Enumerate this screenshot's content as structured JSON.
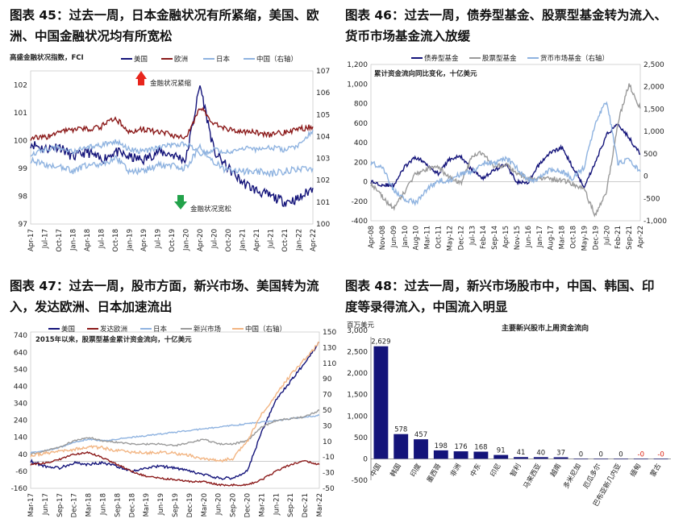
{
  "panels": [
    {
      "title_line1": "图表 45：过去一周，日本金融状况有所紧缩，美国、欧",
      "title_line2": "洲、中国金融状况均有所宽松"
    },
    {
      "title_line1": "图表 46：过去一周，债券型基金、股票型基金转为流入、",
      "title_line2": "货币市场基金流入放缓"
    },
    {
      "title_line1": "图表 47：过去一周，股市方面，新兴市场、美国转为流",
      "title_line2": "入，发达欧洲、日本加速流出"
    },
    {
      "title_line1": "图表 48：过去一周，新兴市场股市中，中国、韩国、印",
      "title_line2": "度等录得流入，中国流入明显"
    }
  ],
  "colors": {
    "navy": "#14147a",
    "darkred": "#8b1a1a",
    "lightblue": "#8fb3e0",
    "gray": "#9a9a9a",
    "peach": "#f2b583",
    "red_arrow": "#e8251c",
    "green_arrow": "#22a24a"
  },
  "chart_data": [
    {
      "type": "line",
      "title": "高盛金融状况指数，FCI",
      "annotation_up": "金融状况紧缩",
      "annotation_down": "金融状况宽松",
      "x": [
        "Apr-17",
        "Jul-17",
        "Oct-17",
        "Jan-18",
        "Apr-18",
        "Jul-18",
        "Oct-18",
        "Jan-19",
        "Apr-19",
        "Jul-19",
        "Oct-19",
        "Jan-20",
        "Apr-20",
        "Jul-20",
        "Oct-20",
        "Jan-21",
        "Apr-21",
        "Jul-21",
        "Oct-21",
        "Jan-22",
        "Apr-22"
      ],
      "ylim": [
        97,
        102.5
      ],
      "yticks": [
        "97",
        "98",
        "99",
        "100",
        "101",
        "102"
      ],
      "y2lim": [
        100,
        107
      ],
      "y2ticks": [
        "100",
        "101",
        "102",
        "103",
        "104",
        "105",
        "106",
        "107"
      ],
      "series": [
        {
          "name": "美国",
          "axis": "left",
          "values": [
            99.9,
            99.7,
            99.8,
            99.4,
            99.6,
            99.3,
            99.6,
            99.4,
            99.3,
            99.6,
            99.5,
            99.3,
            102.0,
            99.6,
            99.0,
            98.5,
            98.2,
            98.0,
            97.8,
            97.9,
            98.3
          ]
        },
        {
          "name": "欧洲",
          "axis": "left",
          "values": [
            100.1,
            100.1,
            100.3,
            100.4,
            100.4,
            100.5,
            100.8,
            100.3,
            100.4,
            100.3,
            100.2,
            100.1,
            101.2,
            100.6,
            100.4,
            100.3,
            100.3,
            100.2,
            100.3,
            100.4,
            100.5
          ]
        },
        {
          "name": "日本",
          "axis": "left",
          "values": [
            99.3,
            99.1,
            99.1,
            98.9,
            99.1,
            99.1,
            99.4,
            98.9,
            98.9,
            99.1,
            99.1,
            99.0,
            99.8,
            99.2,
            98.9,
            98.9,
            98.9,
            98.8,
            98.9,
            99.0,
            99.0
          ]
        },
        {
          "name": "中国（右轴）",
          "axis": "right",
          "values": [
            103.2,
            103.4,
            103.5,
            103.3,
            103.5,
            103.6,
            103.8,
            103.4,
            103.3,
            103.5,
            103.6,
            103.7,
            103.2,
            103.4,
            103.3,
            103.5,
            103.4,
            103.5,
            103.4,
            103.6,
            104.3
          ]
        }
      ]
    },
    {
      "type": "line",
      "title": "累计资金流向同比变化，十亿美元",
      "x": [
        "Apr-08",
        "Nov-08",
        "Jun-09",
        "Jan-10",
        "Aug-10",
        "Mar-11",
        "Oct-11",
        "May-12",
        "Dec-12",
        "Jul-13",
        "Feb-14",
        "Sep-14",
        "Apr-15",
        "Nov-15",
        "Jun-16",
        "Jan-17",
        "Aug-17",
        "Mar-18",
        "Oct-18",
        "May-19",
        "Dec-19",
        "Jul-20",
        "Feb-21",
        "Sep-21",
        "Apr-22"
      ],
      "ylim": [
        -400,
        1200
      ],
      "yticks": [
        "-400",
        "-200",
        "0",
        "200",
        "400",
        "600",
        "800",
        "1,000",
        "1,200"
      ],
      "y2lim": [
        -1000,
        2500
      ],
      "y2ticks": [
        "-1,000",
        "-500",
        "0",
        "500",
        "1,000",
        "1,500",
        "2,000",
        "2,500"
      ],
      "series": [
        {
          "name": "债券型基金",
          "axis": "left",
          "values": [
            0,
            -30,
            -40,
            150,
            250,
            180,
            80,
            230,
            260,
            120,
            40,
            120,
            180,
            0,
            -20,
            180,
            300,
            350,
            150,
            -50,
            200,
            480,
            600,
            450,
            280
          ]
        },
        {
          "name": "股票型基金",
          "axis": "left",
          "values": [
            -20,
            -150,
            -280,
            -100,
            80,
            130,
            150,
            40,
            -20,
            250,
            300,
            150,
            180,
            90,
            30,
            30,
            30,
            20,
            -20,
            -80,
            -350,
            -100,
            600,
            1000,
            750
          ]
        },
        {
          "name": "货币市场基金（右轴）",
          "axis": "right",
          "values": [
            300,
            200,
            -300,
            -500,
            -600,
            -300,
            -100,
            -100,
            50,
            100,
            300,
            300,
            400,
            200,
            -100,
            -50,
            150,
            100,
            -50,
            200,
            1200,
            1700,
            300,
            350,
            100
          ]
        }
      ]
    },
    {
      "type": "line",
      "title": "2015年以来，股票型基金累计资金流向，十亿美元",
      "x": [
        "Mar-17",
        "Jun-17",
        "Sep-17",
        "Dec-17",
        "Mar-18",
        "Jun-18",
        "Sep-18",
        "Dec-18",
        "Mar-19",
        "Jun-19",
        "Sep-19",
        "Dec-19",
        "Mar-20",
        "Jun-20",
        "Sep-20",
        "Dec-20",
        "Mar-21",
        "Jun-21",
        "Sep-21",
        "Dec-21",
        "Mar-22"
      ],
      "ylim": [
        -160,
        760
      ],
      "yticks": [
        "-160",
        "-60",
        "40",
        "140",
        "240",
        "340",
        "440",
        "540",
        "640",
        "740"
      ],
      "y2lim": [
        -50,
        150
      ],
      "y2ticks": [
        "-50",
        "-30",
        "-10",
        "10",
        "30",
        "50",
        "70",
        "90",
        "110",
        "130",
        "150"
      ],
      "series": [
        {
          "name": "美国",
          "axis": "left",
          "values": [
            0,
            -30,
            -40,
            -10,
            -20,
            -10,
            -30,
            -60,
            -40,
            -30,
            -40,
            -60,
            -80,
            -100,
            -100,
            -60,
            170,
            360,
            470,
            580,
            700
          ]
        },
        {
          "name": "发达欧洲",
          "axis": "left",
          "values": [
            -20,
            -10,
            10,
            40,
            50,
            20,
            -20,
            -60,
            -90,
            -100,
            -110,
            -120,
            -120,
            -140,
            -140,
            -140,
            -110,
            -60,
            -20,
            0,
            -20
          ]
        },
        {
          "name": "日本",
          "axis": "left",
          "values": [
            50,
            60,
            80,
            110,
            130,
            120,
            130,
            140,
            150,
            160,
            170,
            180,
            190,
            200,
            210,
            220,
            230,
            240,
            250,
            260,
            270
          ]
        },
        {
          "name": "新兴市场",
          "axis": "left",
          "values": [
            40,
            60,
            80,
            120,
            140,
            120,
            110,
            100,
            100,
            100,
            90,
            110,
            130,
            100,
            100,
            120,
            200,
            240,
            250,
            260,
            300
          ]
        },
        {
          "name": "中国（右轴）",
          "axis": "right",
          "values": [
            -8,
            -5,
            -3,
            0,
            3,
            2,
            -2,
            -4,
            -5,
            -4,
            -5,
            -8,
            -12,
            -15,
            -12,
            10,
            45,
            70,
            95,
            115,
            137
          ]
        }
      ]
    },
    {
      "type": "bar",
      "title": "主要新兴股市上周资金流向",
      "ylabel": "百万美元",
      "ylim": [
        -500,
        3000
      ],
      "yticks": [
        "-500",
        "0",
        "500",
        "1,000",
        "1,500",
        "2,000",
        "2,500",
        "3,000"
      ],
      "categories": [
        "中国",
        "韩国",
        "印度",
        "墨西哥",
        "非洲",
        "中东",
        "印尼",
        "智利",
        "马来西亚",
        "越南",
        "多米尼加",
        "厄瓜多尔",
        "巴布亚新几内亚",
        "缅甸",
        "蒙古"
      ],
      "values": [
        2629,
        578,
        457,
        198,
        176,
        168,
        91,
        41,
        40,
        37,
        0,
        0,
        0,
        -0.3,
        -0.3
      ],
      "labels": [
        "2,629",
        "578",
        "457",
        "198",
        "176",
        "168",
        "91",
        "41",
        "40",
        "37",
        "0",
        "0",
        "0",
        "-0",
        "-0"
      ]
    }
  ]
}
